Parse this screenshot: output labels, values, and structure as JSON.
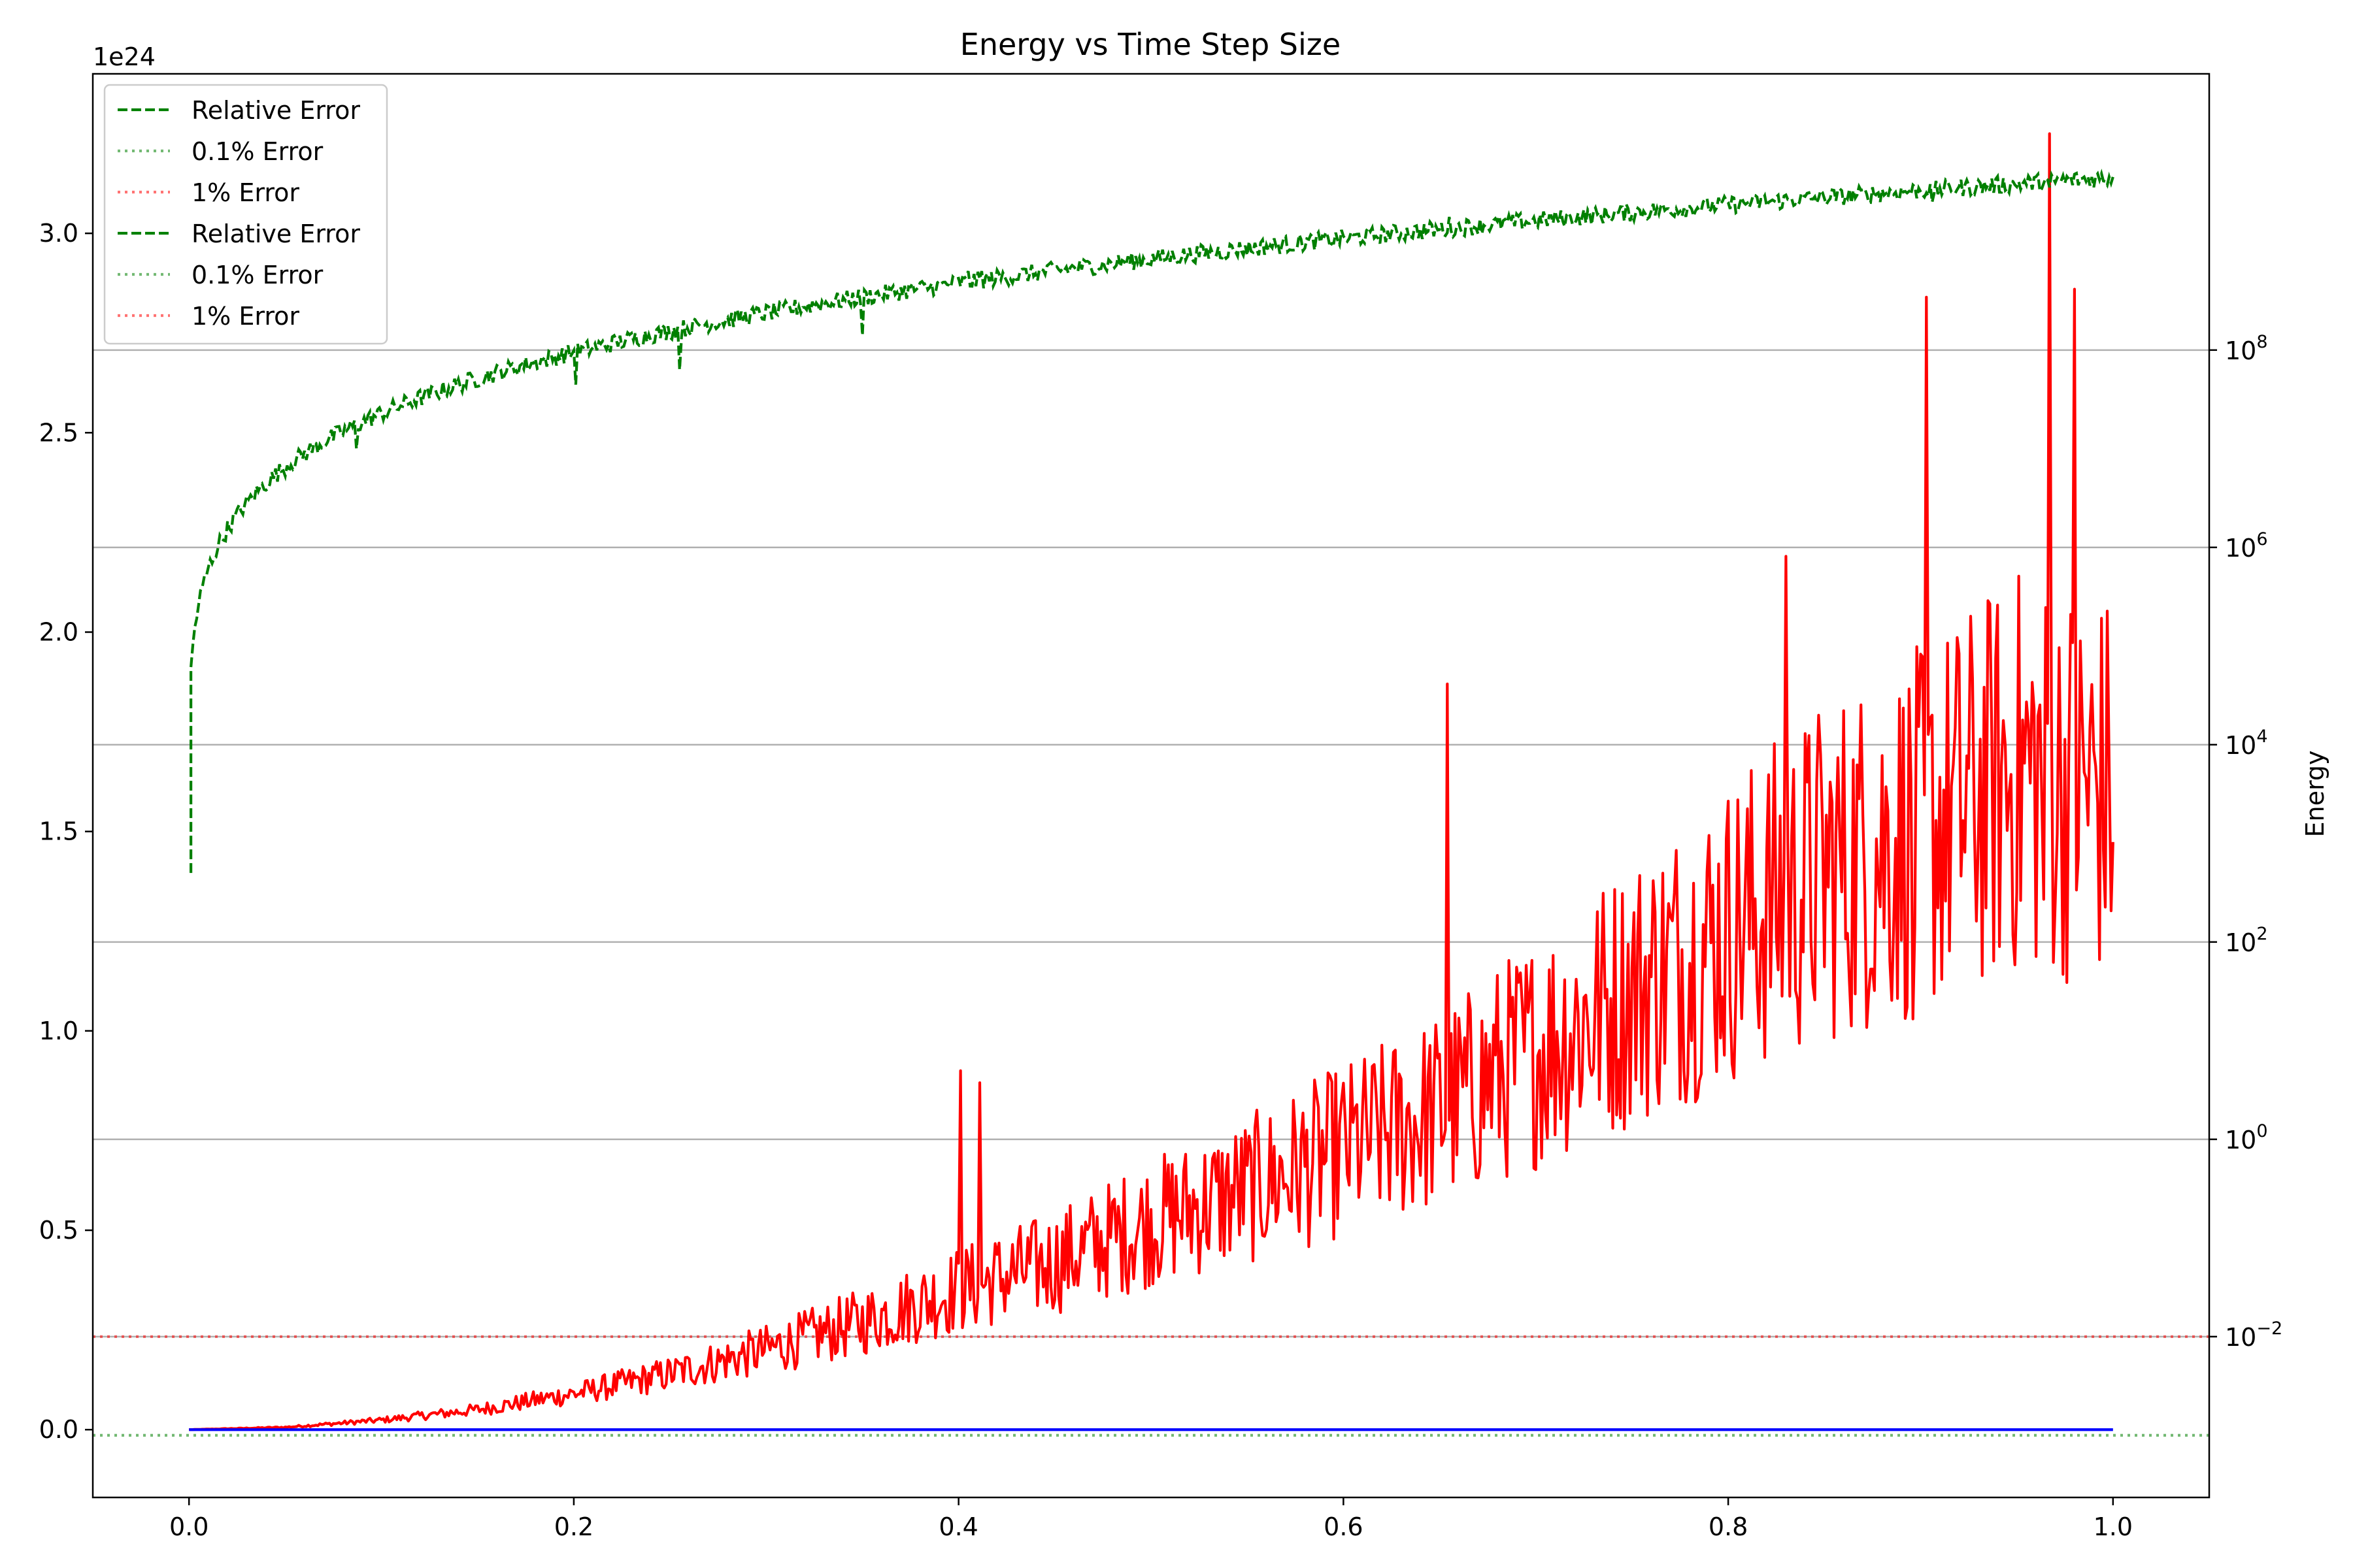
{
  "chart_data": {
    "type": "line",
    "title": "Energy vs Time Step Size",
    "xlabel": "",
    "ylabel_left": "",
    "ylabel_right": "Energy",
    "left_axis_offset_label": "1e24",
    "xlim": [
      -0.05,
      1.05
    ],
    "ylim_left": [
      -0.17,
      3.4
    ],
    "ylim_right_log10": [
      -3.63,
      10.8
    ],
    "grid": "right-axis horizontal lines",
    "legend_placement": "top-left",
    "x_ticks": [
      "0.0",
      "0.2",
      "0.4",
      "0.6",
      "0.8",
      "1.0"
    ],
    "x_tick_values": [
      0.0,
      0.2,
      0.4,
      0.6,
      0.8,
      1.0
    ],
    "y_ticks_left": [
      "0.0",
      "0.5",
      "1.0",
      "1.5",
      "2.0",
      "2.5",
      "3.0"
    ],
    "y_tick_values_left": [
      0.0,
      0.5,
      1.0,
      1.5,
      2.0,
      2.5,
      3.0
    ],
    "y_ticks_right": [
      {
        "base": "10",
        "exp": "−2",
        "log10": -2
      },
      {
        "base": "10",
        "exp": "0",
        "log10": 0
      },
      {
        "base": "10",
        "exp": "2",
        "log10": 2
      },
      {
        "base": "10",
        "exp": "4",
        "log10": 4
      },
      {
        "base": "10",
        "exp": "6",
        "log10": 6
      },
      {
        "base": "10",
        "exp": "8",
        "log10": 8
      }
    ],
    "legend": [
      {
        "label": "Relative Error",
        "color": "#008000",
        "dash": "dashed"
      },
      {
        "label": "0.1% Error",
        "color": "#008000",
        "dash": "dotted"
      },
      {
        "label": "1% Error",
        "color": "#ff0000",
        "dash": "dotted"
      },
      {
        "label": "Relative Error",
        "color": "#008000",
        "dash": "dashed"
      },
      {
        "label": "0.1% Error",
        "color": "#008000",
        "dash": "dotted"
      },
      {
        "label": "1% Error",
        "color": "#ff0000",
        "dash": "dotted"
      }
    ],
    "series": [
      {
        "axis": "left",
        "color": "#ff0000",
        "style": "solid",
        "x": [
          0.0,
          0.05,
          0.1,
          0.15,
          0.2,
          0.25,
          0.3,
          0.35,
          0.4,
          0.45,
          0.5,
          0.55,
          0.6,
          0.65,
          0.7,
          0.75,
          0.8,
          0.85,
          0.9,
          0.95,
          1.0
        ],
        "y": [
          0.0,
          0.006,
          0.024,
          0.05,
          0.09,
          0.14,
          0.2,
          0.27,
          0.35,
          0.42,
          0.52,
          0.6,
          0.7,
          0.8,
          0.95,
          1.1,
          1.25,
          1.4,
          1.5,
          1.65,
          1.6
        ],
        "noise": 0.45,
        "spikes": [
          {
            "x": 0.401,
            "y": 0.9
          },
          {
            "x": 0.411,
            "y": 0.87
          },
          {
            "x": 0.654,
            "y": 1.87
          },
          {
            "x": 0.83,
            "y": 2.19
          },
          {
            "x": 0.903,
            "y": 2.84
          },
          {
            "x": 0.967,
            "y": 3.25
          },
          {
            "x": 0.98,
            "y": 2.86
          },
          {
            "x": 0.964,
            "y": 1.33
          },
          {
            "x": 0.896,
            "y": 1.03
          }
        ]
      },
      {
        "axis": "left",
        "color": "#0000ff",
        "style": "solid",
        "x": [
          0.0,
          1.0
        ],
        "y": [
          0.0,
          0.0
        ]
      },
      {
        "axis": "right",
        "color": "#008000",
        "style": "dashed",
        "log_formula": "log10(E) = 2.7 + 7.05 * (x/1.0) ^ 0.18",
        "log_range": [
          2.7,
          9.75
        ],
        "spikes": [
          {
            "x": 0.087,
            "log10": 7.0
          },
          {
            "x": 0.201,
            "log10": 7.65
          },
          {
            "x": 0.255,
            "log10": 7.8
          },
          {
            "x": 0.35,
            "log10": 8.15
          },
          {
            "x": 0.405,
            "log10": 8.8
          },
          {
            "x": 0.412,
            "log10": 8.8
          },
          {
            "x": 0.655,
            "log10": 9.35
          },
          {
            "x": 0.906,
            "log10": 9.5
          },
          {
            "x": 0.967,
            "log10": 9.65
          }
        ]
      },
      {
        "axis": "right",
        "color": "#008000",
        "style": "dotted",
        "label": "0.1% Error",
        "log10": -3
      },
      {
        "axis": "right",
        "color": "#ff0000",
        "style": "dotted",
        "label": "1% Error",
        "log10": -2
      }
    ]
  }
}
